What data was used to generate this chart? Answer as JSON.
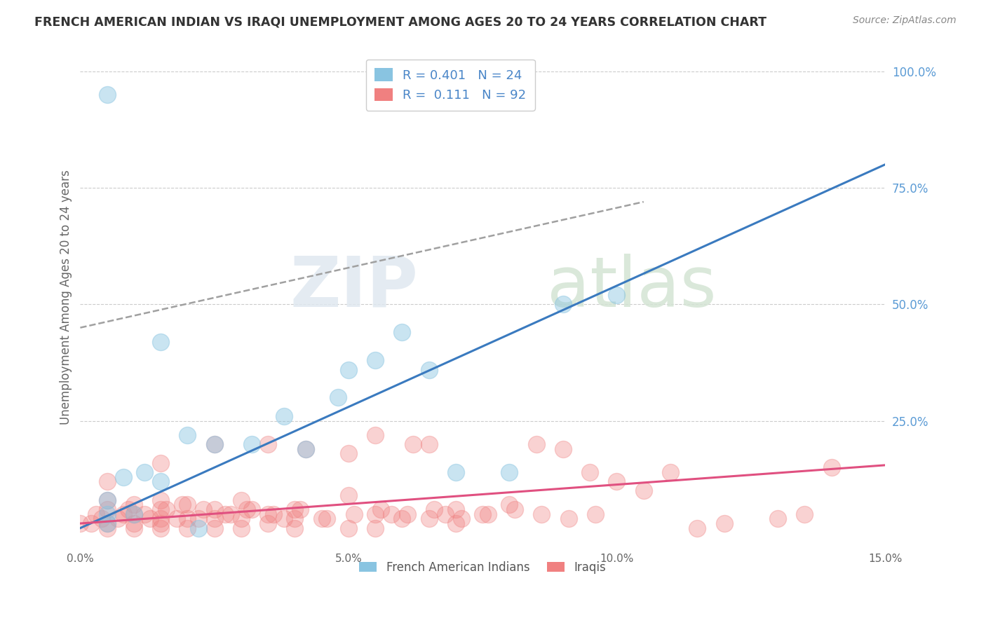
{
  "title": "FRENCH AMERICAN INDIAN VS IRAQI UNEMPLOYMENT AMONG AGES 20 TO 24 YEARS CORRELATION CHART",
  "source": "Source: ZipAtlas.com",
  "ylabel": "Unemployment Among Ages 20 to 24 years",
  "xlim": [
    0.0,
    0.15
  ],
  "ylim": [
    -0.02,
    1.05
  ],
  "xticks": [
    0.0,
    0.05,
    0.1,
    0.15
  ],
  "xticklabels": [
    "0.0%",
    "5.0%",
    "10.0%",
    "15.0%"
  ],
  "yticks": [
    0.0,
    0.25,
    0.5,
    0.75,
    1.0
  ],
  "yticklabels": [
    "",
    "25.0%",
    "50.0%",
    "75.0%",
    "100.0%"
  ],
  "watermark_zip": "ZIP",
  "watermark_atlas": "atlas",
  "legend_line1": "R = 0.401   N = 24",
  "legend_line2": "R =  0.111   N = 92",
  "color_blue": "#89c4e1",
  "color_pink": "#f08080",
  "color_line_blue": "#3a7abf",
  "color_line_pink": "#e05080",
  "color_dash": "#a0a0a0",
  "background_color": "#ffffff",
  "grid_color": "#cccccc",
  "blue_line_x0": 0.0,
  "blue_line_y0": 0.02,
  "blue_line_x1": 0.15,
  "blue_line_y1": 0.8,
  "pink_line_x0": 0.0,
  "pink_line_y0": 0.03,
  "pink_line_x1": 0.15,
  "pink_line_y1": 0.155,
  "dash_line_x0": 0.0,
  "dash_line_y0": 0.45,
  "dash_line_x1": 0.105,
  "dash_line_y1": 0.72,
  "french_x": [
    0.005,
    0.005,
    0.005,
    0.008,
    0.012,
    0.015,
    0.02,
    0.025,
    0.032,
    0.038,
    0.042,
    0.048,
    0.05,
    0.055,
    0.06,
    0.065,
    0.07,
    0.08,
    0.09,
    0.1,
    0.005,
    0.01,
    0.015,
    0.022
  ],
  "french_y": [
    0.03,
    0.05,
    0.95,
    0.13,
    0.14,
    0.42,
    0.22,
    0.2,
    0.2,
    0.26,
    0.19,
    0.3,
    0.36,
    0.38,
    0.44,
    0.36,
    0.14,
    0.14,
    0.5,
    0.52,
    0.08,
    0.05,
    0.12,
    0.02
  ],
  "iraqi_x": [
    0.0,
    0.003,
    0.005,
    0.005,
    0.005,
    0.005,
    0.005,
    0.008,
    0.01,
    0.01,
    0.01,
    0.01,
    0.013,
    0.015,
    0.015,
    0.015,
    0.015,
    0.015,
    0.015,
    0.018,
    0.02,
    0.02,
    0.02,
    0.022,
    0.025,
    0.025,
    0.025,
    0.025,
    0.028,
    0.03,
    0.03,
    0.03,
    0.032,
    0.035,
    0.035,
    0.035,
    0.038,
    0.04,
    0.04,
    0.04,
    0.042,
    0.045,
    0.05,
    0.05,
    0.05,
    0.055,
    0.055,
    0.055,
    0.058,
    0.06,
    0.062,
    0.065,
    0.065,
    0.068,
    0.07,
    0.07,
    0.075,
    0.08,
    0.085,
    0.09,
    0.095,
    0.1,
    0.105,
    0.11,
    0.115,
    0.12,
    0.13,
    0.135,
    0.14,
    0.002,
    0.004,
    0.007,
    0.009,
    0.012,
    0.016,
    0.019,
    0.023,
    0.027,
    0.031,
    0.036,
    0.041,
    0.046,
    0.051,
    0.056,
    0.061,
    0.066,
    0.071,
    0.076,
    0.081,
    0.086,
    0.091,
    0.096
  ],
  "iraqi_y": [
    0.03,
    0.05,
    0.02,
    0.03,
    0.06,
    0.08,
    0.12,
    0.05,
    0.02,
    0.03,
    0.05,
    0.07,
    0.04,
    0.02,
    0.03,
    0.04,
    0.06,
    0.08,
    0.16,
    0.04,
    0.02,
    0.04,
    0.07,
    0.04,
    0.02,
    0.04,
    0.06,
    0.2,
    0.05,
    0.02,
    0.04,
    0.08,
    0.06,
    0.03,
    0.05,
    0.2,
    0.04,
    0.02,
    0.04,
    0.06,
    0.19,
    0.04,
    0.02,
    0.09,
    0.18,
    0.02,
    0.05,
    0.22,
    0.05,
    0.04,
    0.2,
    0.04,
    0.2,
    0.05,
    0.03,
    0.06,
    0.05,
    0.07,
    0.2,
    0.19,
    0.14,
    0.12,
    0.1,
    0.14,
    0.02,
    0.03,
    0.04,
    0.05,
    0.15,
    0.03,
    0.04,
    0.04,
    0.06,
    0.05,
    0.06,
    0.07,
    0.06,
    0.05,
    0.06,
    0.05,
    0.06,
    0.04,
    0.05,
    0.06,
    0.05,
    0.06,
    0.04,
    0.05,
    0.06,
    0.05,
    0.04,
    0.05
  ]
}
